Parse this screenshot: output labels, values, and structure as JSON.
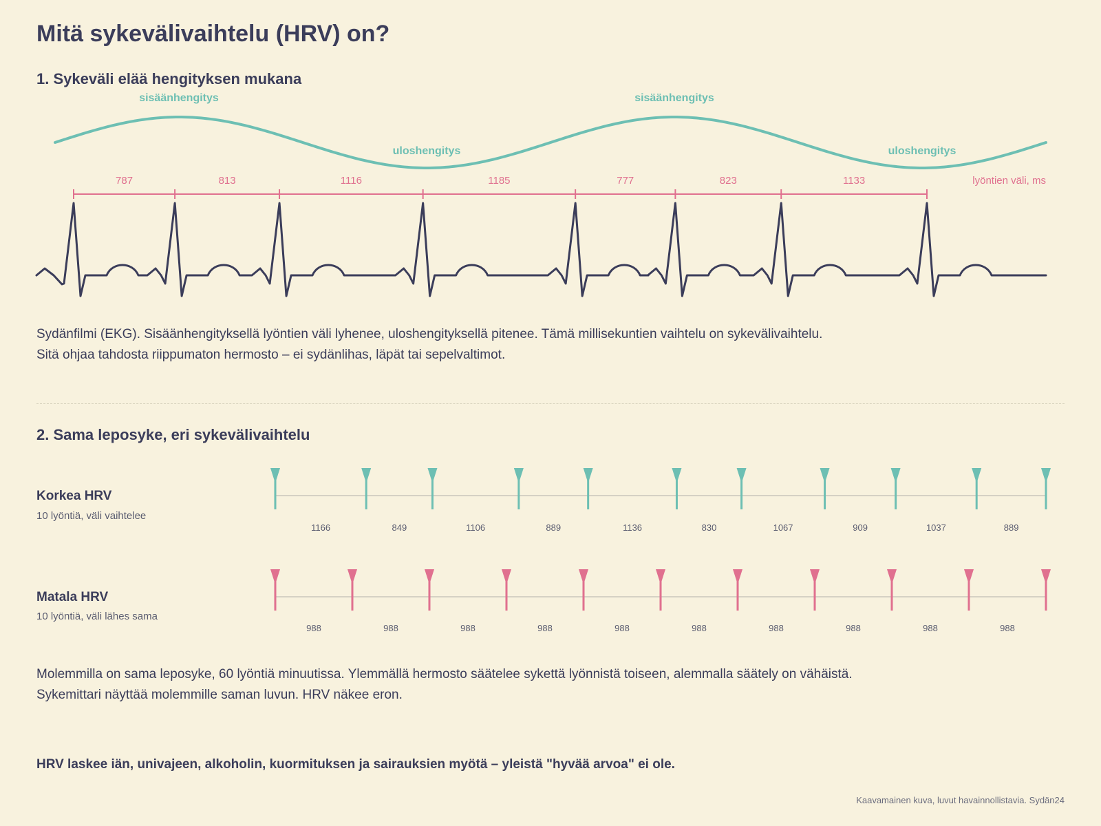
{
  "title": "Mitä sykevälivaihtelu (HRV) on?",
  "section1": {
    "heading": "1. Sykeväli elää hengityksen mukana",
    "inhale_label": "sisäänhengitys",
    "exhale_label": "uloshengitys",
    "interval_caption": "lyöntien väli, ms",
    "intervals_ms": [
      787,
      813,
      1116,
      1185,
      777,
      823,
      1133
    ],
    "text_line1": "Sydänfilmi (EKG). Sisäänhengityksellä lyöntien väli lyhenee, uloshengityksellä pitenee. Tämä millisekuntien vaihtelu on sykevälivaihtelu.",
    "text_line2": "Sitä ohjaa tahdosta riippumaton hermosto – ei sydänlihas, läpät tai sepelvaltimot."
  },
  "section2": {
    "heading": "2. Sama leposyke, eri sykevälivaihtelu",
    "high": {
      "label": "Korkea HRV",
      "sub": "10 lyöntiä, väli vaihtelee",
      "intervals_ms": [
        1166,
        849,
        1106,
        889,
        1136,
        830,
        1067,
        909,
        1037,
        889
      ]
    },
    "low": {
      "label": "Matala HRV",
      "sub": "10 lyöntiä, väli lähes sama",
      "intervals_ms": [
        988,
        988,
        988,
        988,
        988,
        988,
        988,
        988,
        988,
        988
      ]
    },
    "text_line1": "Molemmilla on sama leposyke, 60 lyöntiä minuutissa. Ylemmällä hermosto säätelee sykettä lyönnistä toiseen, alemmalla säätely on vähäistä.",
    "text_line2": "Sykemittari näyttää molemmille saman luvun. HRV näkee eron."
  },
  "bottom_note": "HRV laskee iän, univajeen, alkoholin, kuormituksen ja sairauksien myötä – yleistä \"hyvää arvoa\" ei ole.",
  "footnote": "Kaavamainen kuva, luvut havainnollistavia. Sydän24",
  "colors": {
    "teal": "#6dbfb3",
    "pink": "#e0708f",
    "ink": "#3b3d5a",
    "background": "#f8f2de"
  }
}
